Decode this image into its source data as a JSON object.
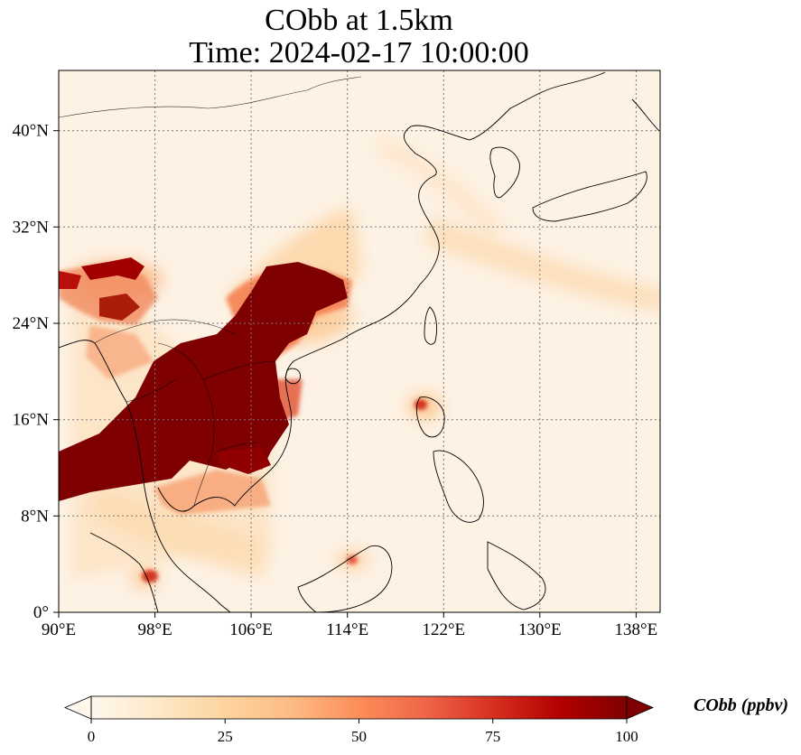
{
  "title": {
    "line1": "CObb at 1.5km",
    "line2": "Time: 2024-02-17 10:00:00"
  },
  "map": {
    "projection": "PlateCarree",
    "lon_range": [
      90,
      140
    ],
    "lat_range": [
      0,
      45
    ],
    "lon_ticks": [
      "90°E",
      "98°E",
      "106°E",
      "114°E",
      "122°E",
      "130°E",
      "138°E"
    ],
    "lat_ticks": [
      "0°",
      "8°N",
      "16°N",
      "24°N",
      "32°N",
      "40°N"
    ],
    "gridlines": "dotted gray",
    "coastlines": true,
    "borders": true
  },
  "colorbar": {
    "label": "CObb (ppbv)",
    "colormap": "OrRd",
    "min": 0,
    "max": 100,
    "extend": "both",
    "ticks": [
      "0",
      "25",
      "50",
      "75",
      "100"
    ],
    "colors": [
      "#fff7ec",
      "#fee8c8",
      "#fdd49e",
      "#fdbb84",
      "#fc8d59",
      "#ef6548",
      "#d7301f",
      "#b30000",
      "#7f0000"
    ]
  }
}
